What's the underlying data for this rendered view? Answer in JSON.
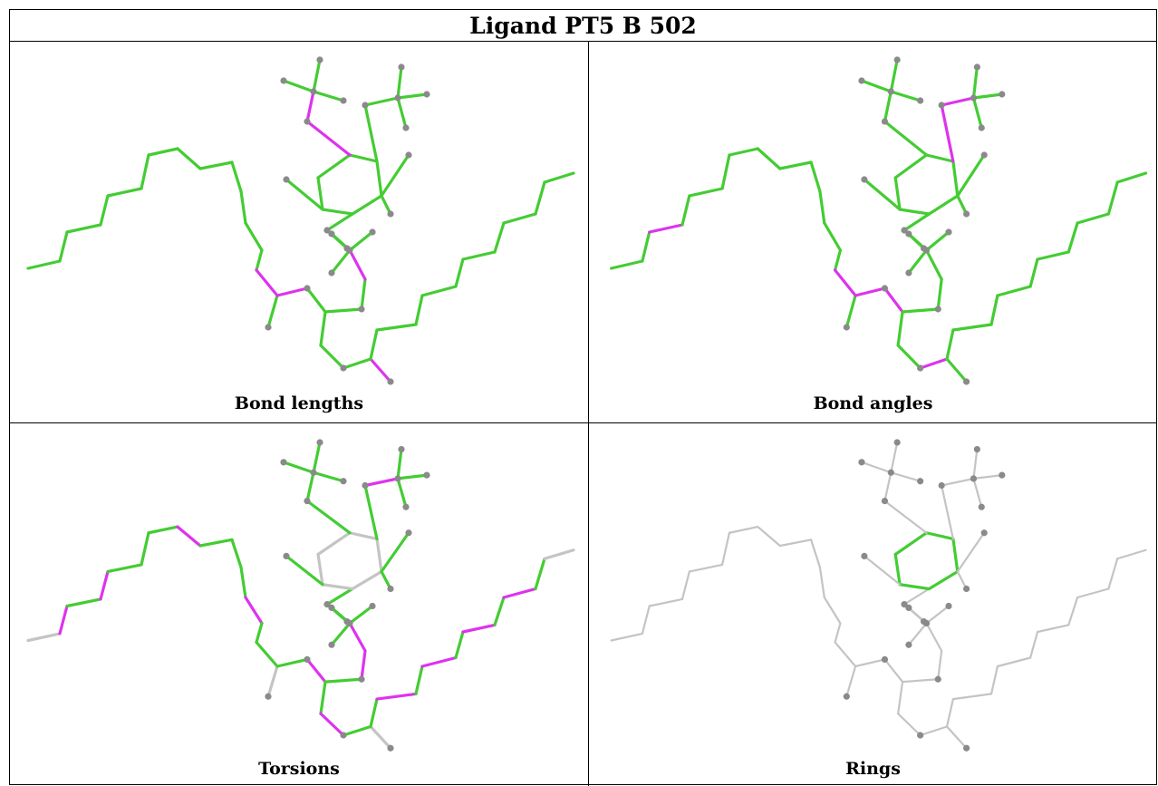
{
  "title": "Ligand PT5 B 502",
  "panels": [
    {
      "caption": "Bond lengths"
    },
    {
      "caption": "Bond angles"
    },
    {
      "caption": "Torsions"
    },
    {
      "caption": "Rings"
    }
  ],
  "colors": {
    "good": "#44cc33",
    "outlier": "#dd33ee",
    "neutral": "#c4c4c4",
    "atom": "#8a8a8a"
  }
}
